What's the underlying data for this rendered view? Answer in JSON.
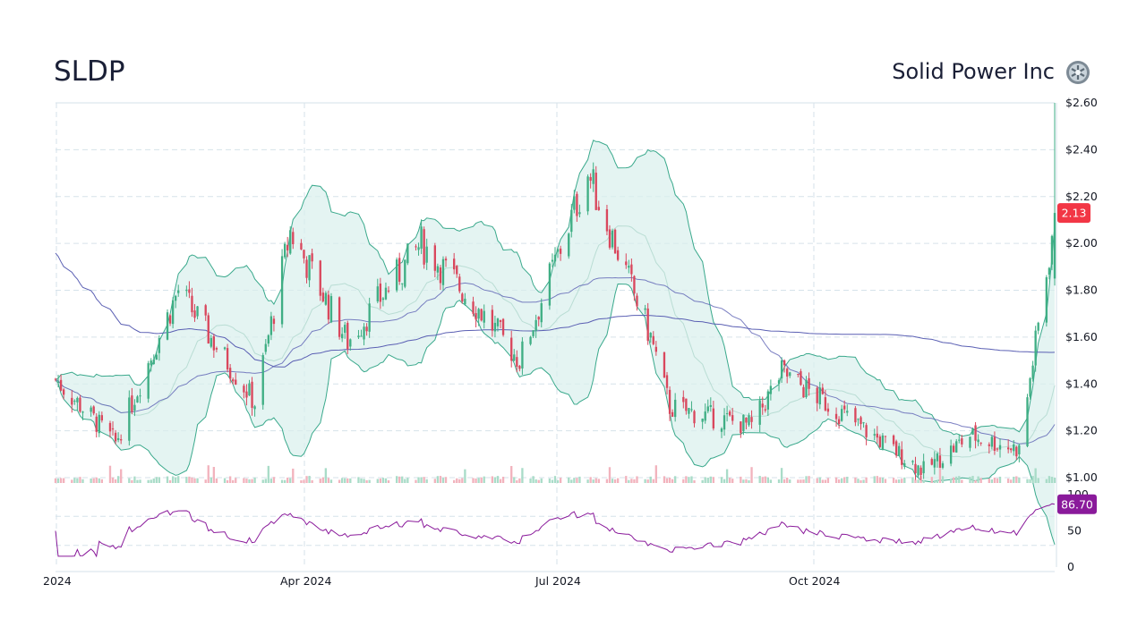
{
  "header": {
    "ticker": "SLDP",
    "company": "Solid Power Inc",
    "logo_icon": "solid-power-logo"
  },
  "chart_data": {
    "type": "candlestick",
    "price_axis": {
      "ticks": [
        1.0,
        1.2,
        1.4,
        1.6,
        1.8,
        2.0,
        2.2,
        2.4,
        2.6
      ],
      "tick_labels": [
        "$1.00",
        "$1.20",
        "$1.40",
        "$1.60",
        "$1.80",
        "$2.00",
        "$2.20",
        "$2.40",
        "$2.60"
      ],
      "ylim": [
        0.98,
        2.6
      ],
      "last_price_label": "2.13",
      "last_price": 2.13
    },
    "rsi_axis": {
      "ticks": [
        0,
        50,
        100
      ],
      "tick_labels": [
        "0",
        "50",
        "100"
      ],
      "upper_band": 70,
      "lower_band": 30,
      "last_value_label": "86.70",
      "last_value": 86.7
    },
    "date_axis": {
      "labels": [
        "2024",
        "Apr 2024",
        "Jul 2024",
        "Oct 2024"
      ]
    },
    "colors": {
      "up": "#3fae84",
      "down": "#d9475d",
      "band_fill": "#d8efec",
      "band_line": "#3aa98c",
      "ma_line": "#5a5fb3",
      "rsi_line": "#8a1a9b",
      "price_badge": "#f23645",
      "rsi_badge": "#8a1a9b",
      "grid": "#d6e2ea"
    },
    "key_points": [
      {
        "date": "2024-01-02",
        "close": 1.42
      },
      {
        "date": "2024-01-24",
        "close": 1.15
      },
      {
        "date": "2024-02-16",
        "close": 1.8
      },
      {
        "date": "2024-03-15",
        "close": 1.32
      },
      {
        "date": "2024-03-28",
        "close": 2.05
      },
      {
        "date": "2024-04-18",
        "close": 1.58
      },
      {
        "date": "2024-05-15",
        "close": 2.0
      },
      {
        "date": "2024-06-05",
        "close": 1.72
      },
      {
        "date": "2024-06-20",
        "close": 1.5
      },
      {
        "date": "2024-07-15",
        "close": 2.3
      },
      {
        "date": "2024-08-07",
        "close": 1.6
      },
      {
        "date": "2024-08-14",
        "close": 1.3
      },
      {
        "date": "2024-09-13",
        "close": 1.22
      },
      {
        "date": "2024-09-24",
        "close": 1.45
      },
      {
        "date": "2024-10-15",
        "close": 1.28
      },
      {
        "date": "2024-11-15",
        "close": 1.03
      },
      {
        "date": "2024-12-02",
        "close": 1.18
      },
      {
        "date": "2024-12-20",
        "close": 1.12
      },
      {
        "date": "2024-12-31",
        "close": 1.95
      },
      {
        "date": "2025-01-02",
        "close": 2.13
      }
    ]
  }
}
